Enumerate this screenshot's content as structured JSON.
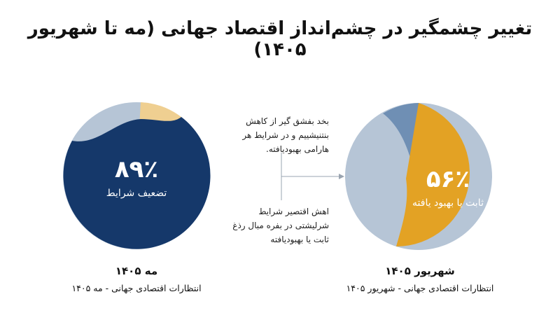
{
  "title": "تغییر چشمگیر در چشم‌انداز اقتصاد جهانی (مه تا شهریور ۱۴۰۵)",
  "colors": {
    "navy": "#15386a",
    "light_blue": "#b6c5d6",
    "mid_blue": "#6f8fb4",
    "gold": "#e3a224",
    "pale_gold": "#efcf91"
  },
  "chart_data": [
    {
      "type": "pie",
      "title": "مه ۱۴۰۵",
      "subtitle": "انتظارات اقتصادی جهانی - مه ۱۴۰۵",
      "center_value": "۸۹٪",
      "center_label": "تضعیف شرایط",
      "slices": [
        {
          "label": "تضعیف شرایط",
          "value": 89,
          "color": "#15386a"
        },
        {
          "label": "",
          "value": 6,
          "color": "#efcf91"
        },
        {
          "label": "",
          "value": 5,
          "color": "#b6c5d6"
        }
      ]
    },
    {
      "type": "pie",
      "title": "شهریور ۱۴۰۵",
      "subtitle": "انتظارات اقتصادی جهانی - شهریور ۱۴۰۵",
      "center_value": "۵۶٪",
      "center_label": "ثابت یا بهبود یافته",
      "slices": [
        {
          "label": "ثابت یا بهبود یافته",
          "value": 56,
          "color": "#e3a224"
        },
        {
          "label": "",
          "value": 36,
          "color": "#b6c5d6"
        },
        {
          "label": "",
          "value": 8,
          "color": "#6f8fb4"
        }
      ]
    }
  ],
  "annotations": {
    "top": "بخد بفشق گیر از کاهش بنتنیشییم و در شرایط هر هارامی بهبودیافته.",
    "bottom": "اهش اقتصیر شرایط شرلیشتی در بفره مبال رذغ ثابت یا بهبودیافته"
  }
}
